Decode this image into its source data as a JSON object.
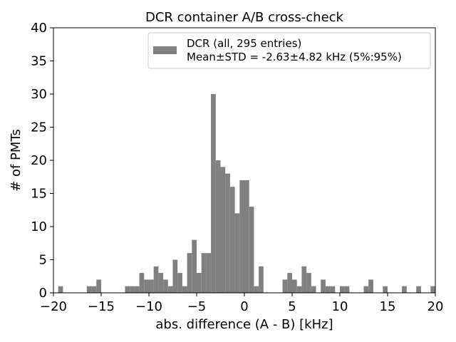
{
  "chart_data": {
    "type": "bar",
    "title": "DCR container A/B cross-check",
    "xlabel": "abs. difference (A - B) [kHz]",
    "ylabel": "# of PMTs",
    "xlim": [
      -20,
      20
    ],
    "ylim": [
      0,
      40
    ],
    "xticks": [
      -20,
      -15,
      -10,
      -5,
      0,
      5,
      10,
      15,
      20
    ],
    "xtick_labels": [
      "−20",
      "−15",
      "−10",
      "−5",
      "0",
      "5",
      "10",
      "15",
      "20"
    ],
    "yticks": [
      0,
      5,
      10,
      15,
      20,
      25,
      30,
      35,
      40
    ],
    "ytick_labels": [
      "0",
      "5",
      "10",
      "15",
      "20",
      "25",
      "30",
      "35",
      "40"
    ],
    "grid": false,
    "legend_position": "top-right",
    "bin_width": 0.5,
    "series": [
      {
        "name": "DCR (all, 295 entries)",
        "color": "#808080",
        "legend_note": "Mean±STD = -2.63±4.82 kHz (5%:95%)",
        "bin_starts": [
          -19.5,
          -16.5,
          -16,
          -15.5,
          -12.5,
          -12,
          -11.5,
          -11,
          -10.5,
          -10,
          -9.5,
          -9,
          -8.5,
          -8,
          -7.5,
          -7,
          -6.5,
          -6,
          -5.5,
          -5,
          -4.5,
          -4,
          -3.5,
          -3,
          -2.5,
          -2,
          -1.5,
          -1,
          -0.5,
          0,
          0.5,
          1,
          1.5,
          4,
          4.5,
          5,
          5.5,
          6,
          6.5,
          7,
          8,
          8.5,
          9,
          10,
          10.5,
          12.5,
          13,
          14.5,
          16.5,
          18,
          19.5
        ],
        "counts": [
          1,
          1,
          1,
          2,
          1,
          1,
          1,
          3,
          2,
          2,
          4,
          3,
          2,
          1,
          5,
          3,
          1,
          6,
          8,
          3,
          6,
          6,
          30,
          20,
          19,
          18,
          16,
          12,
          17,
          17,
          13,
          1,
          4,
          2,
          3,
          2,
          1,
          4,
          3,
          1,
          2,
          1,
          1,
          1,
          1,
          1,
          2,
          1,
          1,
          1,
          1
        ]
      }
    ]
  }
}
